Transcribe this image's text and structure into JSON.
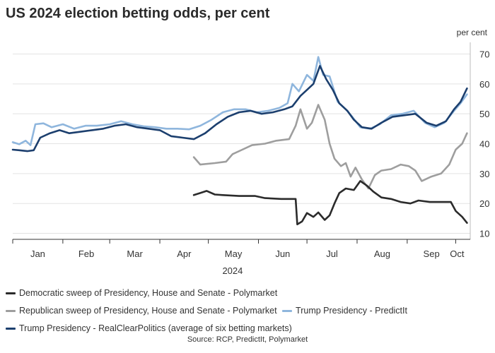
{
  "chart_data": {
    "type": "line",
    "title": "US 2024 election betting odds, per cent",
    "unit_label": "per cent",
    "year_label": "2024",
    "source": "Source: RCP, PredictIt, Polymarket",
    "x_ticks": [
      "Jan",
      "Feb",
      "Mar",
      "Apr",
      "May",
      "Jun",
      "Jul",
      "Aug",
      "Sep",
      "Oct"
    ],
    "y_ticks": [
      10,
      20,
      30,
      40,
      50,
      60,
      70
    ],
    "ylim": [
      8,
      72
    ],
    "xlim": [
      "2024-01-01",
      "2024-10-10"
    ],
    "grid": true,
    "y_axis_side": "right",
    "legend_position": "bottom",
    "series": [
      {
        "name": "Democratic sweep of Presidency, House and Senate - Polymarket",
        "color": "#2b2b2b",
        "points": [
          [
            "2024-04-22",
            22.8
          ],
          [
            "2024-04-26",
            23.5
          ],
          [
            "2024-04-30",
            24.2
          ],
          [
            "2024-05-05",
            23.0
          ],
          [
            "2024-05-10",
            22.8
          ],
          [
            "2024-05-20",
            22.5
          ],
          [
            "2024-05-30",
            22.5
          ],
          [
            "2024-06-05",
            21.8
          ],
          [
            "2024-06-15",
            21.5
          ],
          [
            "2024-06-24",
            21.5
          ],
          [
            "2024-06-25",
            13.0
          ],
          [
            "2024-06-28",
            14.0
          ],
          [
            "2024-07-01",
            16.8
          ],
          [
            "2024-07-05",
            15.5
          ],
          [
            "2024-07-08",
            17.0
          ],
          [
            "2024-07-12",
            14.5
          ],
          [
            "2024-07-15",
            16.0
          ],
          [
            "2024-07-18",
            20.0
          ],
          [
            "2024-07-21",
            23.5
          ],
          [
            "2024-07-25",
            25.0
          ],
          [
            "2024-07-30",
            24.5
          ],
          [
            "2024-08-03",
            27.5
          ],
          [
            "2024-08-07",
            26.0
          ],
          [
            "2024-08-11",
            24.0
          ],
          [
            "2024-08-16",
            22.0
          ],
          [
            "2024-08-22",
            21.5
          ],
          [
            "2024-08-28",
            20.5
          ],
          [
            "2024-09-03",
            20.0
          ],
          [
            "2024-09-08",
            21.0
          ],
          [
            "2024-09-15",
            20.5
          ],
          [
            "2024-09-22",
            20.5
          ],
          [
            "2024-09-28",
            20.5
          ],
          [
            "2024-10-01",
            17.5
          ],
          [
            "2024-10-05",
            15.5
          ],
          [
            "2024-10-08",
            13.5
          ]
        ]
      },
      {
        "name": "Republican sweep of Presidency, House and Senate - Polymarket",
        "color": "#9e9e9e",
        "points": [
          [
            "2024-04-22",
            35.5
          ],
          [
            "2024-04-26",
            33.0
          ],
          [
            "2024-05-05",
            33.5
          ],
          [
            "2024-05-12",
            34.0
          ],
          [
            "2024-05-16",
            36.5
          ],
          [
            "2024-05-22",
            38.0
          ],
          [
            "2024-05-28",
            39.5
          ],
          [
            "2024-06-05",
            40.0
          ],
          [
            "2024-06-12",
            41.0
          ],
          [
            "2024-06-20",
            41.5
          ],
          [
            "2024-06-24",
            46.0
          ],
          [
            "2024-06-27",
            51.5
          ],
          [
            "2024-07-01",
            45.0
          ],
          [
            "2024-07-04",
            47.0
          ],
          [
            "2024-07-08",
            53.0
          ],
          [
            "2024-07-12",
            48.0
          ],
          [
            "2024-07-15",
            40.0
          ],
          [
            "2024-07-18",
            35.0
          ],
          [
            "2024-07-22",
            32.5
          ],
          [
            "2024-07-25",
            33.5
          ],
          [
            "2024-07-28",
            29.0
          ],
          [
            "2024-07-31",
            32.0
          ],
          [
            "2024-08-04",
            28.0
          ],
          [
            "2024-08-08",
            25.0
          ],
          [
            "2024-08-12",
            29.5
          ],
          [
            "2024-08-16",
            31.0
          ],
          [
            "2024-08-22",
            31.5
          ],
          [
            "2024-08-28",
            33.0
          ],
          [
            "2024-09-02",
            32.5
          ],
          [
            "2024-09-06",
            31.0
          ],
          [
            "2024-09-10",
            27.5
          ],
          [
            "2024-09-16",
            29.0
          ],
          [
            "2024-09-22",
            30.0
          ],
          [
            "2024-09-27",
            33.0
          ],
          [
            "2024-10-01",
            38.0
          ],
          [
            "2024-10-05",
            40.0
          ],
          [
            "2024-10-08",
            43.5
          ]
        ]
      },
      {
        "name": "Trump Presidency - PredictIt",
        "color": "#8fb6dd",
        "points": [
          [
            "2024-01-01",
            40.5
          ],
          [
            "2024-01-05",
            39.8
          ],
          [
            "2024-01-09",
            41.0
          ],
          [
            "2024-01-12",
            39.5
          ],
          [
            "2024-01-15",
            46.5
          ],
          [
            "2024-01-20",
            46.8
          ],
          [
            "2024-01-25",
            45.5
          ],
          [
            "2024-02-01",
            46.5
          ],
          [
            "2024-02-08",
            45.0
          ],
          [
            "2024-02-15",
            46.0
          ],
          [
            "2024-02-22",
            46.0
          ],
          [
            "2024-03-01",
            46.5
          ],
          [
            "2024-03-08",
            47.5
          ],
          [
            "2024-03-15",
            46.5
          ],
          [
            "2024-03-22",
            45.8
          ],
          [
            "2024-03-29",
            45.5
          ],
          [
            "2024-04-05",
            45.0
          ],
          [
            "2024-04-12",
            45.0
          ],
          [
            "2024-04-19",
            44.8
          ],
          [
            "2024-04-26",
            46.0
          ],
          [
            "2024-05-03",
            48.0
          ],
          [
            "2024-05-10",
            50.5
          ],
          [
            "2024-05-17",
            51.5
          ],
          [
            "2024-05-24",
            51.5
          ],
          [
            "2024-05-31",
            50.5
          ],
          [
            "2024-06-07",
            51.0
          ],
          [
            "2024-06-14",
            52.0
          ],
          [
            "2024-06-19",
            53.5
          ],
          [
            "2024-06-22",
            60.0
          ],
          [
            "2024-06-26",
            57.5
          ],
          [
            "2024-07-01",
            63.0
          ],
          [
            "2024-07-05",
            61.0
          ],
          [
            "2024-07-08",
            69.0
          ],
          [
            "2024-07-11",
            63.0
          ],
          [
            "2024-07-15",
            62.5
          ],
          [
            "2024-07-20",
            54.0
          ],
          [
            "2024-07-25",
            51.5
          ],
          [
            "2024-07-29",
            49.0
          ],
          [
            "2024-08-03",
            45.5
          ],
          [
            "2024-08-09",
            45.0
          ],
          [
            "2024-08-15",
            46.5
          ],
          [
            "2024-08-22",
            49.5
          ],
          [
            "2024-08-29",
            50.0
          ],
          [
            "2024-09-05",
            51.0
          ],
          [
            "2024-09-12",
            47.0
          ],
          [
            "2024-09-18",
            45.5
          ],
          [
            "2024-09-24",
            47.0
          ],
          [
            "2024-09-30",
            51.0
          ],
          [
            "2024-10-04",
            53.5
          ],
          [
            "2024-10-08",
            56.5
          ]
        ]
      },
      {
        "name": "Trump Presidency - RealClearPolitics (average of six betting markets)",
        "color": "#1c3f6e",
        "points": [
          [
            "2024-01-01",
            38.0
          ],
          [
            "2024-01-05",
            37.8
          ],
          [
            "2024-01-10",
            37.5
          ],
          [
            "2024-01-14",
            37.8
          ],
          [
            "2024-01-18",
            42.0
          ],
          [
            "2024-01-24",
            43.5
          ],
          [
            "2024-01-30",
            44.5
          ],
          [
            "2024-02-05",
            43.5
          ],
          [
            "2024-02-12",
            44.0
          ],
          [
            "2024-02-19",
            44.5
          ],
          [
            "2024-02-26",
            45.0
          ],
          [
            "2024-03-04",
            46.0
          ],
          [
            "2024-03-11",
            46.5
          ],
          [
            "2024-03-18",
            45.5
          ],
          [
            "2024-03-25",
            45.0
          ],
          [
            "2024-04-01",
            44.5
          ],
          [
            "2024-04-08",
            42.5
          ],
          [
            "2024-04-15",
            42.0
          ],
          [
            "2024-04-22",
            41.5
          ],
          [
            "2024-04-29",
            43.5
          ],
          [
            "2024-05-06",
            46.5
          ],
          [
            "2024-05-13",
            49.0
          ],
          [
            "2024-05-20",
            50.5
          ],
          [
            "2024-05-27",
            51.0
          ],
          [
            "2024-06-03",
            50.0
          ],
          [
            "2024-06-10",
            50.5
          ],
          [
            "2024-06-17",
            51.5
          ],
          [
            "2024-06-22",
            52.5
          ],
          [
            "2024-06-27",
            56.0
          ],
          [
            "2024-07-01",
            58.0
          ],
          [
            "2024-07-05",
            60.0
          ],
          [
            "2024-07-09",
            66.0
          ],
          [
            "2024-07-13",
            61.5
          ],
          [
            "2024-07-17",
            58.0
          ],
          [
            "2024-07-21",
            53.5
          ],
          [
            "2024-07-26",
            51.0
          ],
          [
            "2024-07-30",
            48.0
          ],
          [
            "2024-08-04",
            45.5
          ],
          [
            "2024-08-10",
            45.0
          ],
          [
            "2024-08-16",
            47.0
          ],
          [
            "2024-08-23",
            49.0
          ],
          [
            "2024-08-30",
            49.5
          ],
          [
            "2024-09-06",
            50.0
          ],
          [
            "2024-09-13",
            47.0
          ],
          [
            "2024-09-19",
            46.0
          ],
          [
            "2024-09-25",
            47.5
          ],
          [
            "2024-09-30",
            51.5
          ],
          [
            "2024-10-04",
            54.0
          ],
          [
            "2024-10-08",
            58.5
          ]
        ]
      }
    ]
  }
}
